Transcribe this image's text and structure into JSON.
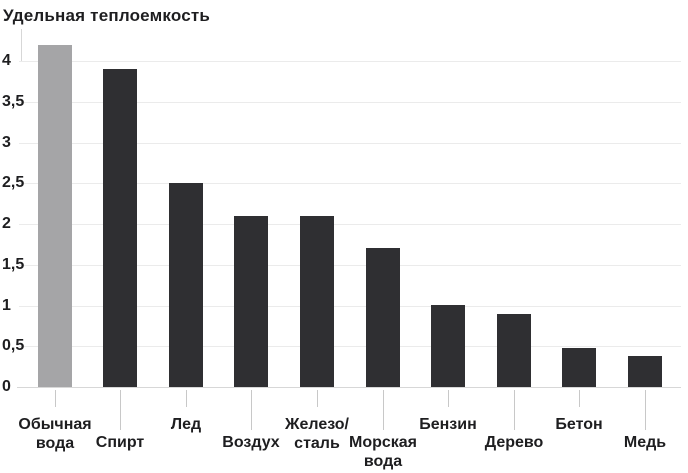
{
  "chart_data": {
    "type": "bar",
    "title": "Удельная теплоемкость",
    "categories": [
      "Обычная вода",
      "Спирт",
      "Лед",
      "Воздух",
      "Железо/сталь",
      "Морская вода",
      "Бензин",
      "Дерево",
      "Бетон",
      "Медь"
    ],
    "values": [
      4.2,
      3.9,
      2.5,
      2.1,
      2.1,
      1.7,
      1.0,
      0.9,
      0.48,
      0.38
    ],
    "xlabel": "",
    "ylabel": "",
    "ylim": [
      0,
      4.35
    ],
    "yticks": [
      0,
      0.5,
      1,
      1.5,
      2,
      2.5,
      3,
      3.5,
      4
    ],
    "ytick_labels": [
      "0",
      "0,5",
      "1",
      "1,5",
      "2",
      "2,5",
      "3",
      "3,5",
      "4"
    ],
    "grid": true,
    "legend": "none",
    "highlight_index": 0,
    "category_label_lines": [
      [
        "Обычная",
        "вода"
      ],
      [
        "Спирт"
      ],
      [
        "Лед"
      ],
      [
        "Воздух"
      ],
      [
        "Железо/",
        "сталь"
      ],
      [
        "Морская",
        "вода"
      ],
      [
        "Бензин"
      ],
      [
        "Дерево"
      ],
      [
        "Бетон"
      ],
      [
        "Медь"
      ]
    ],
    "category_label_row": [
      "upper",
      "lower",
      "upper",
      "lower",
      "upper",
      "lower",
      "upper",
      "lower",
      "upper",
      "lower"
    ]
  },
  "colors": {
    "background": "#ffffff",
    "bar": "#2f2f32",
    "highlight_bar": "#a5a5a7",
    "grid_line": "#ebebeb",
    "axis_line": "#d7d7d7",
    "tick_line": "#c8c8c8",
    "text": "#1e1e20"
  }
}
